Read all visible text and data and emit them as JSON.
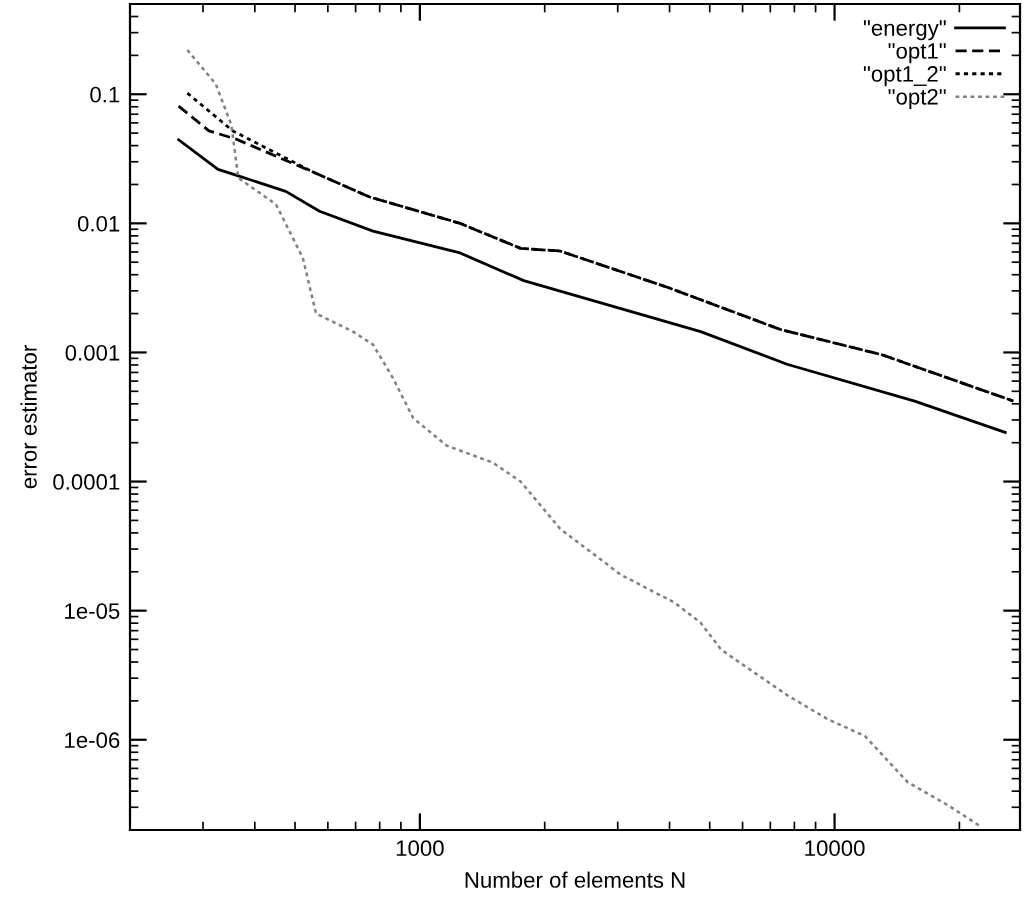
{
  "chart_data": {
    "type": "line",
    "xlabel": "Number of elements N",
    "ylabel": "error estimator",
    "log": "xy",
    "xlim": [
      200,
      28000
    ],
    "ylim": [
      2e-07,
      0.5
    ],
    "xticks": [
      1000,
      10000
    ],
    "yticks": [
      0.1,
      0.01,
      0.001,
      0.0001,
      {
        "value": 1e-05,
        "label": "1e-05"
      },
      {
        "value": 1e-06,
        "label": "1e-06"
      }
    ],
    "grid": false,
    "legend": "top right",
    "marker": "none",
    "series": [
      {
        "name": "\"energy\"",
        "color": "#000000",
        "line_style": "solid",
        "x": [
          262,
          326,
          365,
          475,
          573,
          771,
          1250,
          1780,
          4755,
          7680,
          15600,
          25800
        ],
        "values": [
          0.0444,
          0.0262,
          0.0233,
          0.0177,
          0.0124,
          0.0087,
          0.0059,
          0.0036,
          0.00145,
          0.00081,
          0.00042,
          0.00024
        ]
      },
      {
        "name": "\"opt1\"",
        "color": "#000000",
        "line_style": "dashed",
        "x": [
          262,
          310,
          360,
          552,
          757,
          1250,
          1750,
          2180,
          3950,
          7430,
          13000,
          27000
        ],
        "values": [
          0.081,
          0.052,
          0.045,
          0.025,
          0.016,
          0.01,
          0.0064,
          0.0061,
          0.0032,
          0.0015,
          0.00096,
          0.00042
        ]
      },
      {
        "name": "\"opt1_2\"",
        "color": "#000000",
        "line_style": "dotted",
        "x": [
          275,
          354,
          552,
          757,
          1250,
          1750,
          2180,
          3950,
          7430,
          13000,
          27000
        ],
        "values": [
          0.102,
          0.052,
          0.025,
          0.016,
          0.01,
          0.0064,
          0.0061,
          0.0032,
          0.0015,
          0.00096,
          0.00042
        ]
      },
      {
        "name": "\"opt2\"",
        "color": "#808080",
        "line_style": "dotted",
        "x": [
          275,
          322,
          351,
          365,
          450,
          522,
          562,
          690,
          771,
          862,
          964,
          1160,
          1500,
          1750,
          2180,
          3050,
          4100,
          4750,
          5320,
          7710,
          9640,
          11830,
          15000,
          18800,
          22400
        ],
        "values": [
          0.22,
          0.12,
          0.058,
          0.0225,
          0.014,
          0.0054,
          0.002,
          0.00145,
          0.00115,
          0.00063,
          0.00031,
          0.00019,
          0.00014,
          0.0001,
          4.3e-05,
          1.9e-05,
          1.16e-05,
          8.1e-06,
          5e-06,
          2.2e-06,
          1.44e-06,
          1.07e-06,
          4.7e-07,
          3.1e-07,
          2.15e-07
        ]
      }
    ]
  }
}
